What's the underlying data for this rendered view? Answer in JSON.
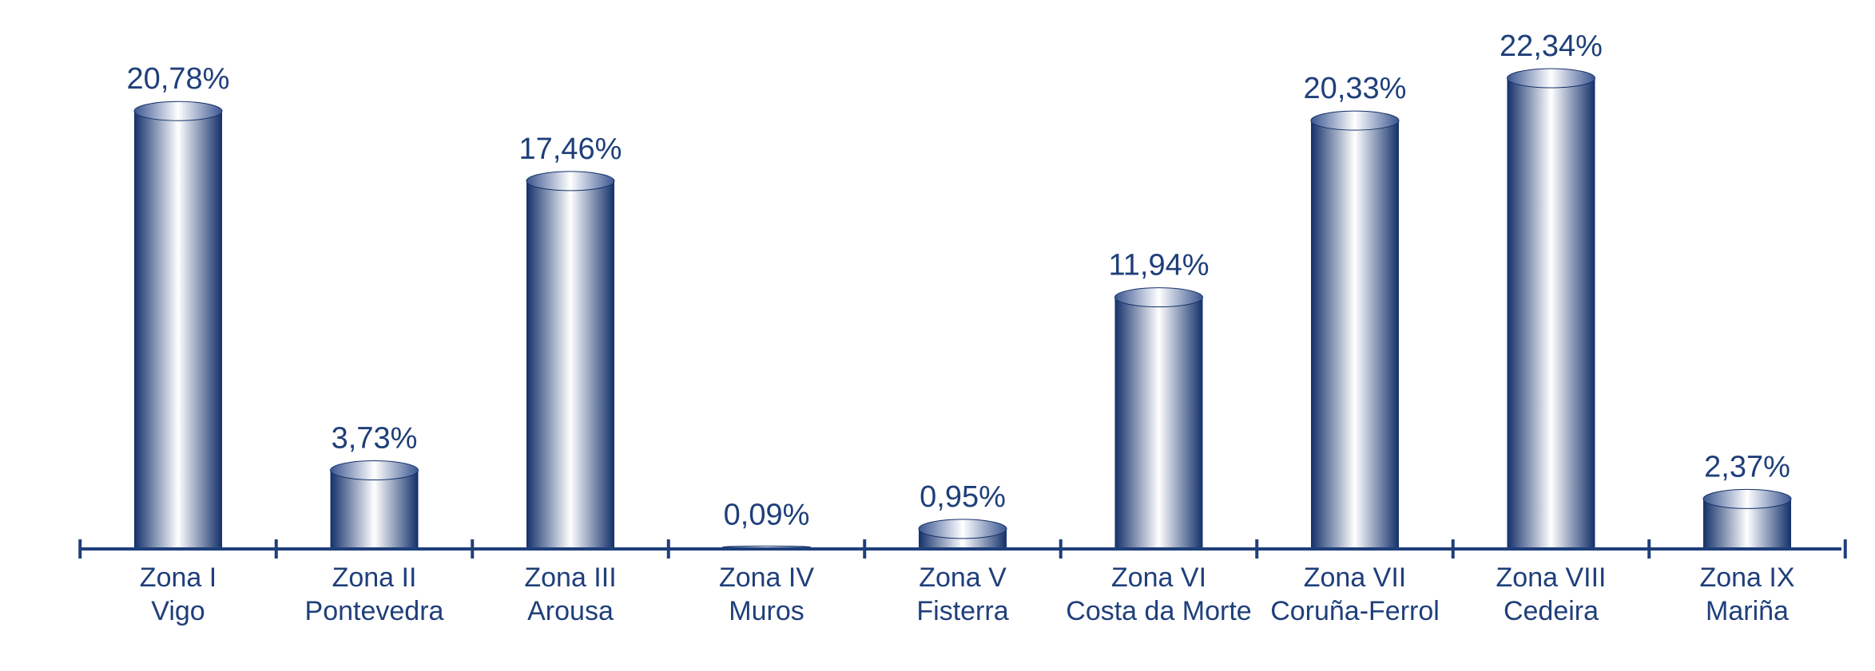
{
  "chart_data": {
    "type": "bar",
    "categories": [
      [
        "Zona I",
        "Vigo"
      ],
      [
        "Zona II",
        "Pontevedra"
      ],
      [
        "Zona III",
        "Arousa"
      ],
      [
        "Zona IV",
        "Muros"
      ],
      [
        "Zona V",
        "Fisterra"
      ],
      [
        "Zona VI",
        "Costa da Morte"
      ],
      [
        "Zona VII",
        "Coruña-Ferrol"
      ],
      [
        "Zona VIII",
        "Cedeira"
      ],
      [
        "Zona IX",
        "Mariña"
      ]
    ],
    "values": [
      20.78,
      3.73,
      17.46,
      0.09,
      0.95,
      11.94,
      20.33,
      22.34,
      2.37
    ],
    "value_labels": [
      "20,78%",
      "3,73%",
      "17,46%",
      "0,09%",
      "0,95%",
      "11,94%",
      "20,33%",
      "22,34%",
      "2,37%"
    ],
    "ylim": [
      0,
      22.34
    ],
    "grid": false,
    "legend": "none",
    "colors": {
      "bar_dark": "#13306a",
      "bar_light": "#ffffff",
      "axis": "#1f3f7a",
      "text": "#1f3f7a"
    }
  }
}
